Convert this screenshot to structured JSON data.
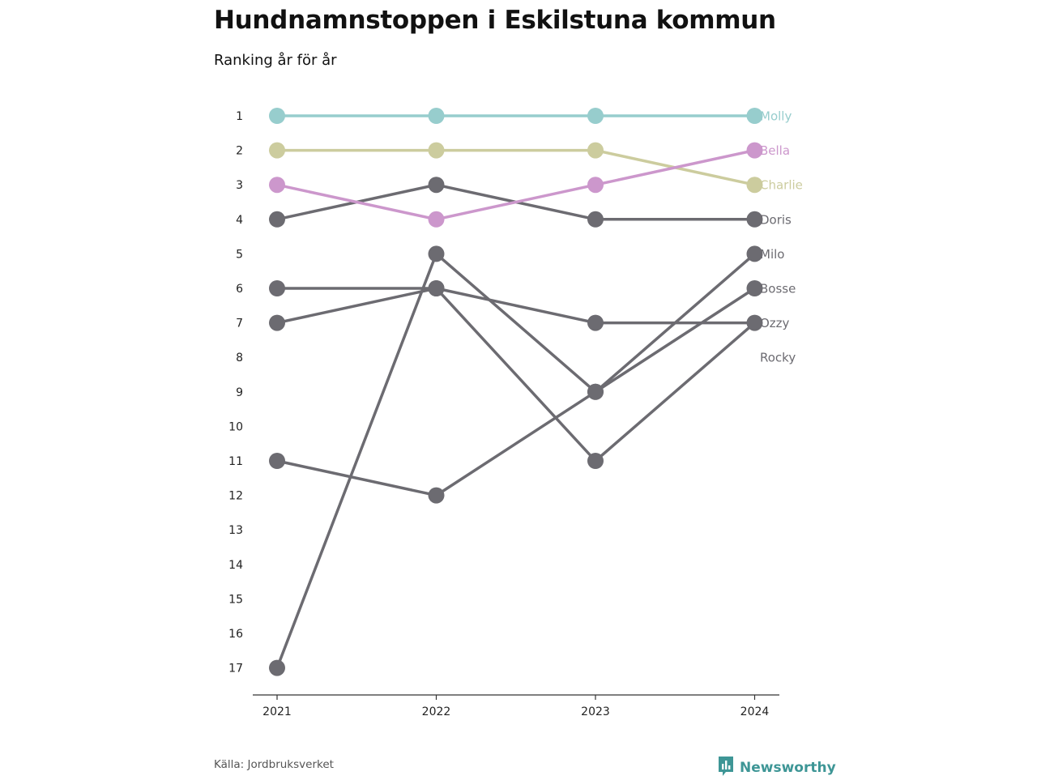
{
  "header": {
    "title": "Hundnamnstoppen i Eskilstuna kommun",
    "subtitle": "Ranking år för år"
  },
  "footer": {
    "source": "Källa: Jordbruksverket",
    "brand": "Newsworthy",
    "brand_icon": "newsworthy-logo-icon"
  },
  "colors": {
    "Molly": "#97cdcd",
    "Bella": "#cc97cc",
    "Charlie": "#cccc9e",
    "default": "#6c6b71",
    "axis": "#333333",
    "brand": "#3e9696"
  },
  "chart_data": {
    "type": "line",
    "subtype": "bump",
    "x": [
      "2021",
      "2022",
      "2023",
      "2024"
    ],
    "y_ticks": [
      1,
      2,
      3,
      4,
      5,
      6,
      7,
      8,
      9,
      10,
      11,
      12,
      13,
      14,
      15,
      16,
      17
    ],
    "ylim": [
      1,
      17
    ],
    "y_reversed": true,
    "grid": false,
    "series": [
      {
        "name": "Molly",
        "values": [
          1,
          1,
          1,
          1
        ]
      },
      {
        "name": "Bella",
        "values": [
          3,
          4,
          3,
          2
        ]
      },
      {
        "name": "Charlie",
        "values": [
          2,
          2,
          2,
          3
        ]
      },
      {
        "name": "Doris",
        "values": [
          4,
          3,
          4,
          4
        ]
      },
      {
        "name": "Milo",
        "values": [
          11,
          12,
          9,
          5
        ]
      },
      {
        "name": "Bosse",
        "values": [
          17,
          5,
          9,
          6
        ]
      },
      {
        "name": "Ozzy",
        "values": [
          6,
          6,
          7,
          7
        ]
      },
      {
        "name": "Rocky",
        "values": [
          7,
          6,
          11,
          7
        ]
      }
    ]
  }
}
